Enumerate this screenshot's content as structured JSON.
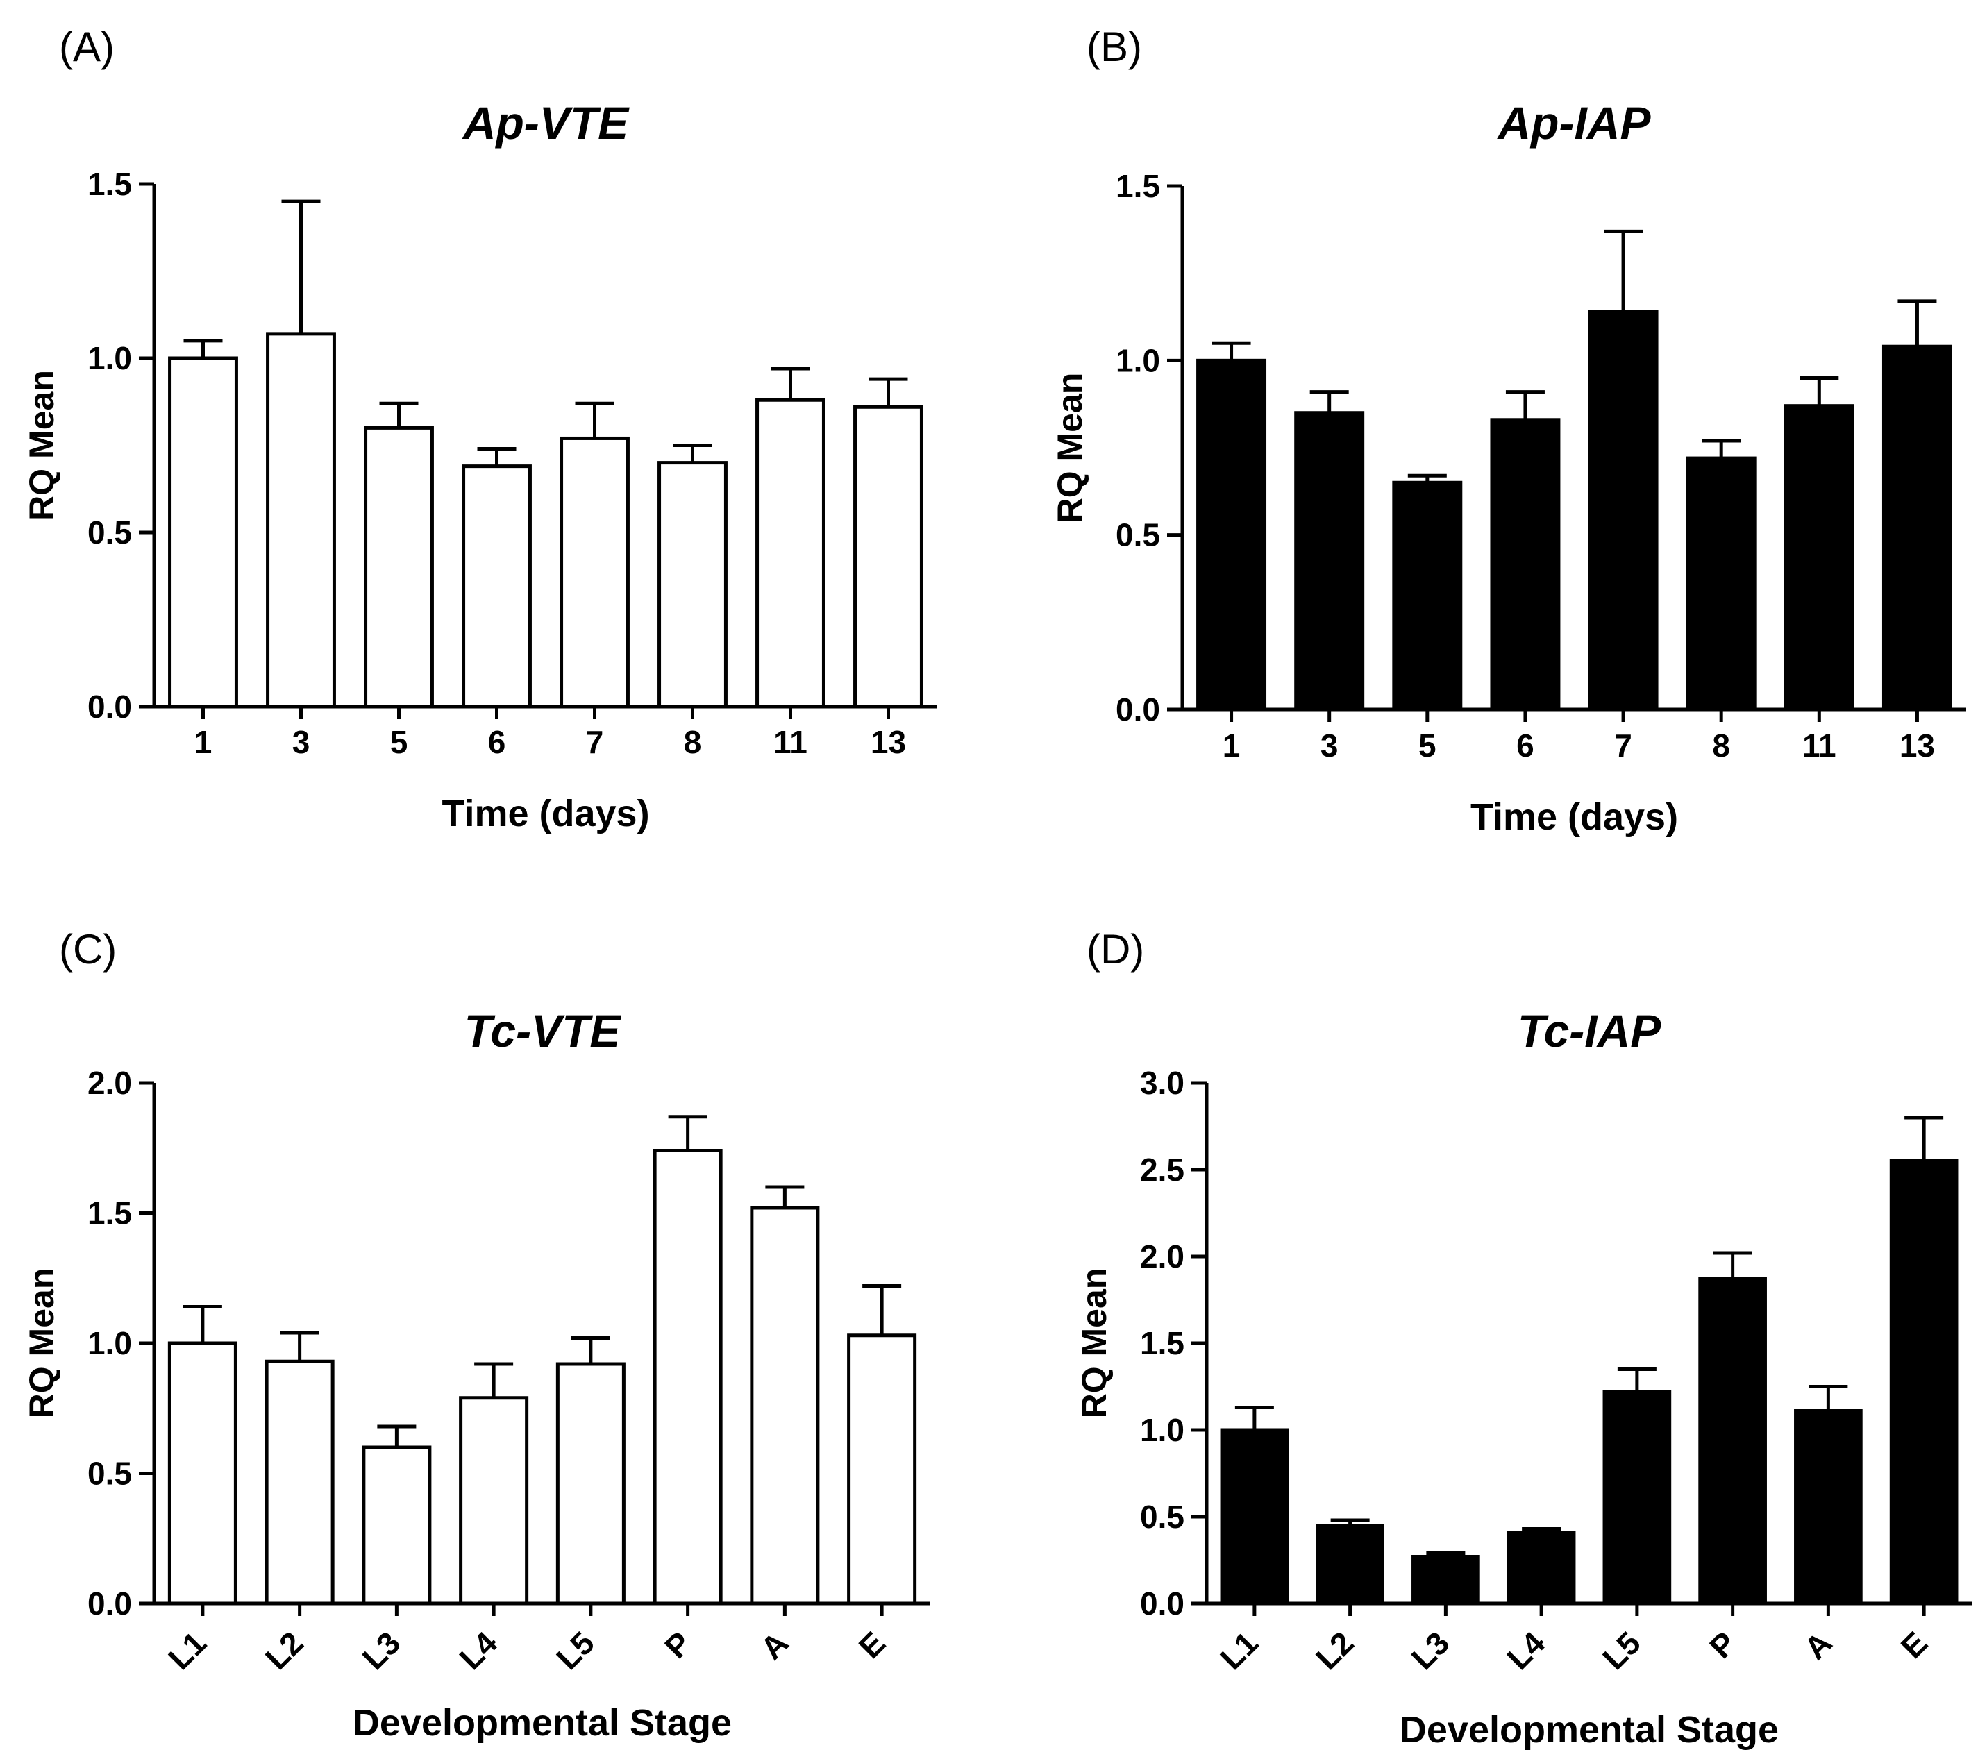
{
  "chart_data": [
    {
      "panel": "(A)",
      "type": "bar",
      "title": "Ap-VTE",
      "xlabel": "Time (days)",
      "ylabel": "RQ Mean",
      "categories": [
        "1",
        "3",
        "5",
        "6",
        "7",
        "8",
        "11",
        "13"
      ],
      "values": [
        1.0,
        1.07,
        0.8,
        0.69,
        0.77,
        0.7,
        0.88,
        0.86
      ],
      "errors": [
        0.05,
        0.38,
        0.07,
        0.05,
        0.1,
        0.05,
        0.09,
        0.08
      ],
      "ylim": [
        0,
        1.5
      ],
      "yticks": [
        "0.0",
        "0.5",
        "1.0",
        "1.5"
      ],
      "bar_fill": "#ffffff",
      "rotate_x_labels": false
    },
    {
      "panel": "(B)",
      "type": "bar",
      "title": "Ap-IAP",
      "xlabel": "Time (days)",
      "ylabel": "RQ Mean",
      "categories": [
        "1",
        "3",
        "5",
        "6",
        "7",
        "8",
        "11",
        "13"
      ],
      "values": [
        1.0,
        0.85,
        0.65,
        0.83,
        1.14,
        0.72,
        0.87,
        1.04
      ],
      "errors": [
        0.05,
        0.06,
        0.02,
        0.08,
        0.23,
        0.05,
        0.08,
        0.13
      ],
      "ylim": [
        0,
        1.5
      ],
      "yticks": [
        "0.0",
        "0.5",
        "1.0",
        "1.5"
      ],
      "bar_fill": "#000000",
      "rotate_x_labels": false
    },
    {
      "panel": "(C)",
      "type": "bar",
      "title": "Tc-VTE",
      "xlabel": "Developmental Stage",
      "ylabel": "RQ Mean",
      "categories": [
        "L1",
        "L2",
        "L3",
        "L4",
        "L5",
        "P",
        "A",
        "E"
      ],
      "values": [
        1.0,
        0.93,
        0.6,
        0.79,
        0.92,
        1.74,
        1.52,
        1.03
      ],
      "errors": [
        0.14,
        0.11,
        0.08,
        0.13,
        0.1,
        0.13,
        0.08,
        0.19
      ],
      "ylim": [
        0,
        2.0
      ],
      "yticks": [
        "0.0",
        "0.5",
        "1.0",
        "1.5",
        "2.0"
      ],
      "bar_fill": "#ffffff",
      "rotate_x_labels": true
    },
    {
      "panel": "(D)",
      "type": "bar",
      "title": "Tc-IAP",
      "xlabel": "Developmental Stage",
      "ylabel": "RQ Mean",
      "categories": [
        "L1",
        "L2",
        "L3",
        "L4",
        "L5",
        "P",
        "A",
        "E"
      ],
      "values": [
        1.0,
        0.45,
        0.27,
        0.41,
        1.22,
        1.87,
        1.11,
        2.55
      ],
      "errors": [
        0.13,
        0.03,
        0.02,
        0.02,
        0.13,
        0.15,
        0.14,
        0.25
      ],
      "ylim": [
        0,
        3.0
      ],
      "yticks": [
        "0.0",
        "0.5",
        "1.0",
        "1.5",
        "2.0",
        "2.5",
        "3.0"
      ],
      "bar_fill": "#000000",
      "rotate_x_labels": true
    }
  ]
}
